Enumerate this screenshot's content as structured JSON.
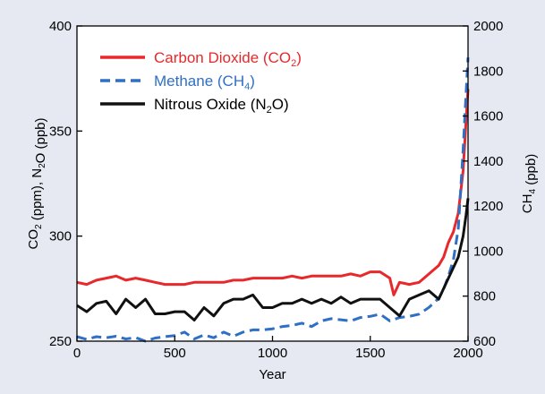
{
  "chart_data": {
    "type": "line",
    "title": "",
    "xlabel": "Year",
    "ylabel_left": "CO₂ (ppm), N₂O (ppb)",
    "ylabel_right": "CH₄ (ppb)",
    "xlim": [
      0,
      2000
    ],
    "ylim_left": [
      250,
      400
    ],
    "ylim_right": [
      600,
      2000
    ],
    "xticks": [
      0,
      500,
      1000,
      1500,
      2000
    ],
    "yticks_left": [
      250,
      300,
      350,
      400
    ],
    "yticks_right": [
      600,
      800,
      1000,
      1200,
      1400,
      1600,
      1800,
      2000
    ],
    "grid": false,
    "legend_position": "top-left",
    "legend": [
      {
        "label": "Carbon Dioxide (CO",
        "sub": "2",
        "tail": ")",
        "color": "#e8282b",
        "dash": "solid"
      },
      {
        "label": "Methane (CH",
        "sub": "4",
        "tail": ")",
        "color": "#2f6fc4",
        "dash": "dashed"
      },
      {
        "label": "Nitrous Oxide (N",
        "sub": "2",
        "tail": "O)",
        "color": "#111111",
        "dash": "solid"
      }
    ],
    "series": [
      {
        "name": "Carbon Dioxide (CO2)",
        "axis": "left",
        "color": "#e8282b",
        "dash": "solid",
        "x": [
          0,
          50,
          100,
          150,
          200,
          250,
          300,
          350,
          400,
          450,
          500,
          550,
          600,
          650,
          700,
          750,
          800,
          850,
          900,
          950,
          1000,
          1050,
          1100,
          1150,
          1200,
          1250,
          1300,
          1350,
          1400,
          1450,
          1500,
          1550,
          1600,
          1620,
          1650,
          1700,
          1750,
          1800,
          1850,
          1875,
          1900,
          1925,
          1950,
          1975,
          1990,
          2000
        ],
        "y": [
          278,
          277,
          279,
          280,
          281,
          279,
          280,
          279,
          278,
          277,
          277,
          277,
          278,
          278,
          278,
          278,
          279,
          279,
          280,
          280,
          280,
          280,
          281,
          280,
          281,
          281,
          281,
          281,
          282,
          281,
          283,
          283,
          280,
          272,
          278,
          277,
          278,
          282,
          286,
          290,
          297,
          302,
          311,
          331,
          355,
          370
        ]
      },
      {
        "name": "Methane (CH4)",
        "axis": "right",
        "color": "#2f6fc4",
        "dash": "dashed",
        "x": [
          0,
          50,
          100,
          150,
          200,
          250,
          300,
          350,
          400,
          450,
          500,
          550,
          600,
          650,
          700,
          750,
          800,
          850,
          900,
          950,
          1000,
          1050,
          1100,
          1150,
          1200,
          1250,
          1300,
          1350,
          1400,
          1450,
          1500,
          1550,
          1600,
          1650,
          1700,
          1750,
          1800,
          1850,
          1875,
          1900,
          1925,
          1950,
          1975,
          1990,
          2000
        ],
        "y": [
          620,
          608,
          620,
          615,
          622,
          610,
          616,
          600,
          614,
          620,
          625,
          640,
          610,
          628,
          615,
          640,
          622,
          640,
          650,
          650,
          655,
          665,
          670,
          680,
          665,
          690,
          700,
          695,
          690,
          705,
          710,
          720,
          690,
          705,
          710,
          720,
          750,
          790,
          830,
          890,
          960,
          1100,
          1450,
          1700,
          1860
        ]
      },
      {
        "name": "Nitrous Oxide (N2O)",
        "axis": "left",
        "color": "#111111",
        "dash": "solid",
        "x": [
          0,
          50,
          100,
          150,
          200,
          250,
          300,
          350,
          400,
          450,
          500,
          550,
          600,
          650,
          700,
          750,
          800,
          850,
          900,
          950,
          1000,
          1050,
          1100,
          1150,
          1200,
          1250,
          1300,
          1350,
          1400,
          1450,
          1500,
          1550,
          1600,
          1650,
          1700,
          1750,
          1800,
          1850,
          1875,
          1900,
          1925,
          1950,
          1975,
          1990,
          2000
        ],
        "y": [
          267,
          264,
          268,
          269,
          263,
          270,
          266,
          270,
          263,
          263,
          264,
          264,
          260,
          266,
          262,
          268,
          270,
          270,
          272,
          266,
          266,
          268,
          268,
          270,
          268,
          270,
          268,
          271,
          268,
          270,
          270,
          270,
          266,
          262,
          270,
          272,
          274,
          270,
          275,
          280,
          285,
          290,
          300,
          310,
          318
        ]
      }
    ]
  }
}
